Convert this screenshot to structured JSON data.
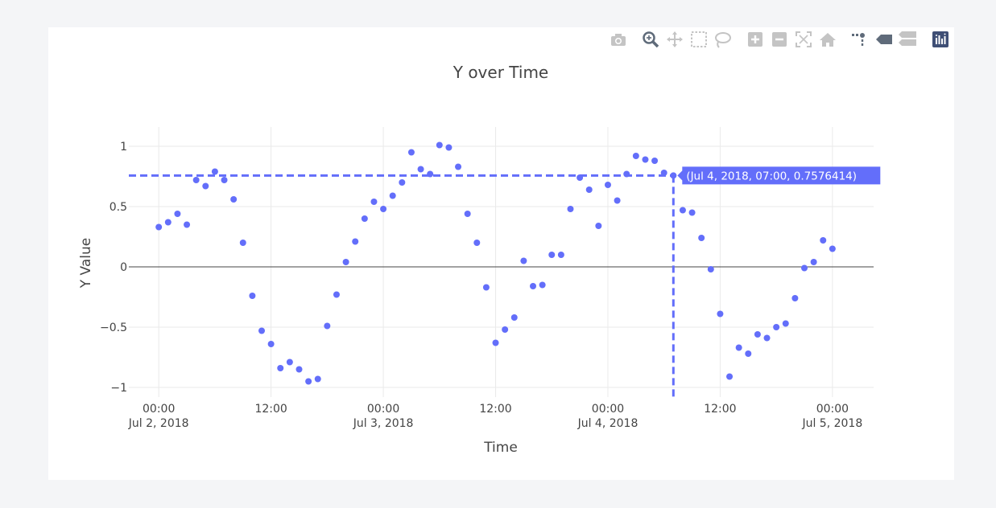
{
  "chart_data": {
    "type": "scatter",
    "title": "Y over Time",
    "xlabel": "Time",
    "ylabel": "Y Value",
    "x_unit": "hours since 2018-07-02 00:00",
    "x_ticks": [
      {
        "x": 0,
        "line1": "00:00",
        "line2": "Jul 2, 2018"
      },
      {
        "x": 12,
        "line1": "12:00",
        "line2": ""
      },
      {
        "x": 24,
        "line1": "00:00",
        "line2": "Jul 3, 2018"
      },
      {
        "x": 36,
        "line1": "12:00",
        "line2": ""
      },
      {
        "x": 48,
        "line1": "00:00",
        "line2": "Jul 4, 2018"
      },
      {
        "x": 60,
        "line1": "12:00",
        "line2": ""
      },
      {
        "x": 72,
        "line1": "00:00",
        "line2": "Jul 5, 2018"
      }
    ],
    "y_ticks": [
      {
        "y": 1,
        "label": "1"
      },
      {
        "y": 0.5,
        "label": "0.5"
      },
      {
        "y": 0,
        "label": "0"
      },
      {
        "y": -0.5,
        "label": "−0.5"
      },
      {
        "y": -1,
        "label": "−1"
      }
    ],
    "xlim": [
      -3.2,
      76.4
    ],
    "ylim": [
      -1.08,
      1.16
    ],
    "grid": true,
    "marker_color": "#636efa",
    "points": [
      {
        "x": 0,
        "y": 0.33
      },
      {
        "x": 1,
        "y": 0.37
      },
      {
        "x": 2,
        "y": 0.44
      },
      {
        "x": 3,
        "y": 0.35
      },
      {
        "x": 4,
        "y": 0.72
      },
      {
        "x": 5,
        "y": 0.67
      },
      {
        "x": 6,
        "y": 0.79
      },
      {
        "x": 7,
        "y": 0.72
      },
      {
        "x": 8,
        "y": 0.56
      },
      {
        "x": 9,
        "y": 0.2
      },
      {
        "x": 10,
        "y": -0.24
      },
      {
        "x": 11,
        "y": -0.53
      },
      {
        "x": 12,
        "y": -0.64
      },
      {
        "x": 13,
        "y": -0.84
      },
      {
        "x": 14,
        "y": -0.79
      },
      {
        "x": 15,
        "y": -0.85
      },
      {
        "x": 16,
        "y": -0.95
      },
      {
        "x": 17,
        "y": -0.93
      },
      {
        "x": 18,
        "y": -0.49
      },
      {
        "x": 19,
        "y": -0.23
      },
      {
        "x": 20,
        "y": 0.04
      },
      {
        "x": 21,
        "y": 0.21
      },
      {
        "x": 22,
        "y": 0.4
      },
      {
        "x": 23,
        "y": 0.54
      },
      {
        "x": 24,
        "y": 0.48
      },
      {
        "x": 25,
        "y": 0.59
      },
      {
        "x": 26,
        "y": 0.7
      },
      {
        "x": 27,
        "y": 0.95
      },
      {
        "x": 28,
        "y": 0.81
      },
      {
        "x": 29,
        "y": 0.77
      },
      {
        "x": 30,
        "y": 1.01
      },
      {
        "x": 31,
        "y": 0.99
      },
      {
        "x": 32,
        "y": 0.83
      },
      {
        "x": 33,
        "y": 0.44
      },
      {
        "x": 34,
        "y": 0.2
      },
      {
        "x": 35,
        "y": -0.17
      },
      {
        "x": 36,
        "y": -0.63
      },
      {
        "x": 37,
        "y": -0.52
      },
      {
        "x": 38,
        "y": -0.42
      },
      {
        "x": 39,
        "y": 0.05
      },
      {
        "x": 40,
        "y": -0.16
      },
      {
        "x": 41,
        "y": -0.15
      },
      {
        "x": 42,
        "y": 0.1
      },
      {
        "x": 43,
        "y": 0.1
      },
      {
        "x": 44,
        "y": 0.48
      },
      {
        "x": 45,
        "y": 0.74
      },
      {
        "x": 46,
        "y": 0.64
      },
      {
        "x": 47,
        "y": 0.34
      },
      {
        "x": 48,
        "y": 0.68
      },
      {
        "x": 49,
        "y": 0.55
      },
      {
        "x": 50,
        "y": 0.77
      },
      {
        "x": 51,
        "y": 0.92
      },
      {
        "x": 52,
        "y": 0.89
      },
      {
        "x": 53,
        "y": 0.88
      },
      {
        "x": 54,
        "y": 0.78
      },
      {
        "x": 55,
        "y": 0.7576414
      },
      {
        "x": 56,
        "y": 0.47
      },
      {
        "x": 57,
        "y": 0.45
      },
      {
        "x": 58,
        "y": 0.24
      },
      {
        "x": 59,
        "y": -0.02
      },
      {
        "x": 60,
        "y": -0.39
      },
      {
        "x": 61,
        "y": -0.91
      },
      {
        "x": 62,
        "y": -0.67
      },
      {
        "x": 63,
        "y": -0.72
      },
      {
        "x": 64,
        "y": -0.56
      },
      {
        "x": 65,
        "y": -0.59
      },
      {
        "x": 66,
        "y": -0.5
      },
      {
        "x": 67,
        "y": -0.47
      },
      {
        "x": 68,
        "y": -0.26
      },
      {
        "x": 69,
        "y": -0.01
      },
      {
        "x": 70,
        "y": 0.04
      },
      {
        "x": 71,
        "y": 0.22
      },
      {
        "x": 72,
        "y": 0.15
      }
    ],
    "hover": {
      "x": 55,
      "y": 0.7576414,
      "label": "(Jul 4, 2018, 07:00, 0.7576414)",
      "color": "#636efa"
    }
  },
  "modebar": {
    "icons": [
      "camera-icon",
      "zoom-icon",
      "pan-icon",
      "box-select-icon",
      "lasso-select-icon",
      "zoom-in-icon",
      "zoom-out-icon",
      "autoscale-icon",
      "reset-axes-icon",
      "spikelines-icon",
      "hover-closest-icon",
      "hover-compare-icon",
      "plotly-logo-icon"
    ]
  }
}
